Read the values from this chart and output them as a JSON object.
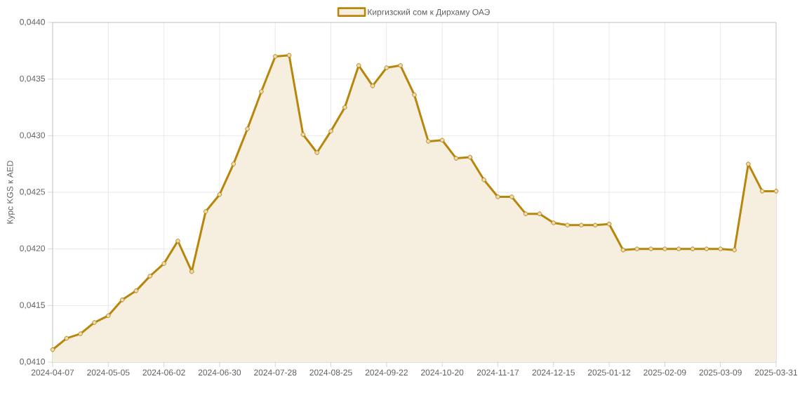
{
  "chart_data": {
    "type": "area",
    "ylabel": "Курс KGS к AED",
    "categories": [
      "2024-04-07",
      null,
      null,
      null,
      "2024-05-05",
      null,
      null,
      null,
      "2024-06-02",
      null,
      null,
      null,
      "2024-06-30",
      null,
      null,
      null,
      "2024-07-28",
      null,
      null,
      null,
      "2024-08-25",
      null,
      null,
      null,
      "2024-09-22",
      null,
      null,
      null,
      "2024-10-20",
      null,
      null,
      null,
      "2024-11-17",
      null,
      null,
      null,
      "2024-12-15",
      null,
      null,
      null,
      "2025-01-12",
      null,
      null,
      null,
      "2025-02-09",
      null,
      null,
      null,
      "2025-03-09",
      null,
      null,
      null,
      "2025-03-31"
    ],
    "series": [
      {
        "name": "Киргизский сом к Дирхаму ОАЭ",
        "color": "#b8860b",
        "values": [
          0.04111,
          0.04121,
          0.04125,
          0.04135,
          0.04141,
          0.04155,
          0.04163,
          0.04176,
          0.04187,
          0.04207,
          0.0418,
          0.04233,
          0.04248,
          0.04275,
          0.04306,
          0.04339,
          0.0437,
          0.04371,
          0.04301,
          0.04285,
          0.04304,
          0.04325,
          0.04362,
          0.04344,
          0.0436,
          0.04362,
          0.04336,
          0.04295,
          0.04296,
          0.0428,
          0.04281,
          0.04261,
          0.04246,
          0.04246,
          0.04231,
          0.04231,
          0.04223,
          0.04221,
          0.04221,
          0.04221,
          0.04222,
          0.04199,
          0.042,
          0.042,
          0.042,
          0.042,
          0.042,
          0.042,
          0.042,
          0.04199,
          0.04275,
          0.04251,
          0.04251
        ]
      }
    ],
    "ylim": [
      0.041,
      0.044
    ],
    "yticks": [
      {
        "value": 0.041,
        "label": "0,0410"
      },
      {
        "value": 0.0415,
        "label": "0,0415"
      },
      {
        "value": 0.042,
        "label": "0,0420"
      },
      {
        "value": 0.0425,
        "label": "0,0425"
      },
      {
        "value": 0.043,
        "label": "0,0430"
      },
      {
        "value": 0.0435,
        "label": "0,0435"
      },
      {
        "value": 0.044,
        "label": "0,0440"
      }
    ],
    "grid": true,
    "legend": "top",
    "marker": "circle",
    "line_style": "solid"
  }
}
